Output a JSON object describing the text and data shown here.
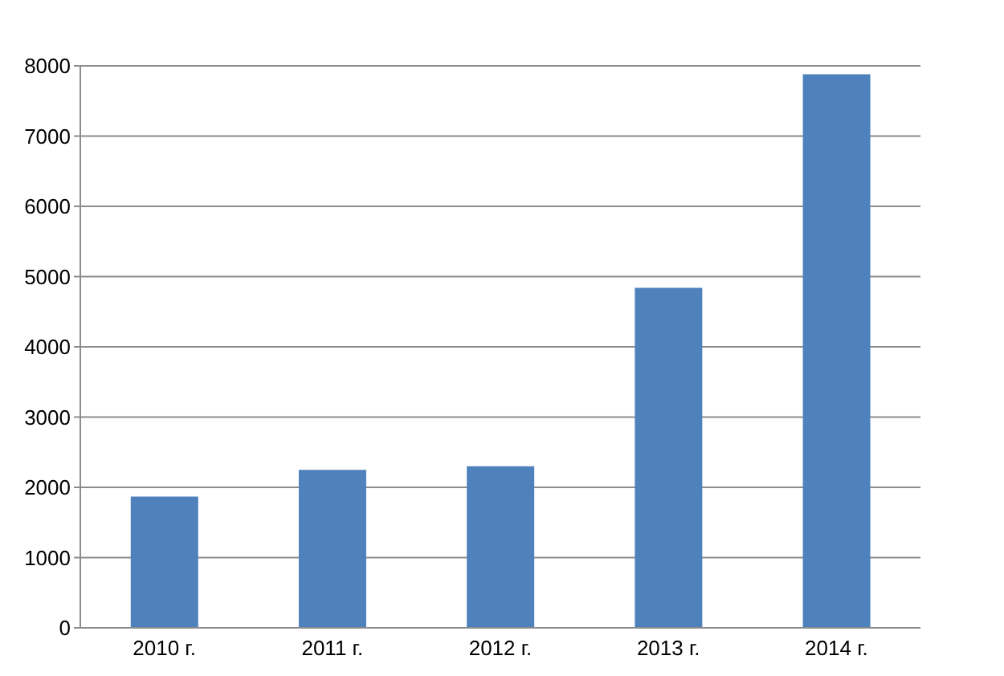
{
  "chart_data": {
    "type": "bar",
    "categories": [
      "2010 г.",
      "2011 г.",
      "2012 г.",
      "2013 г.",
      "2014 г."
    ],
    "values": [
      1870,
      2250,
      2300,
      4840,
      7880
    ],
    "color": "#4f81bd",
    "ylim": [
      0,
      8000
    ],
    "yticks": [
      0,
      1000,
      2000,
      3000,
      4000,
      5000,
      6000,
      7000,
      8000
    ],
    "grid": "y"
  }
}
